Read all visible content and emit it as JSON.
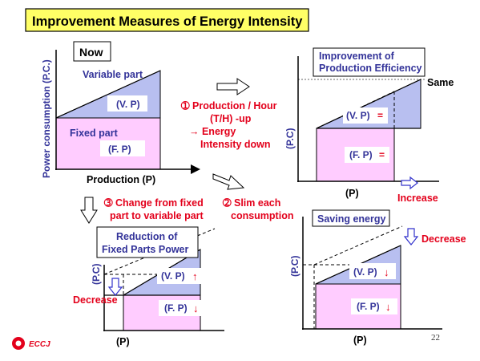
{
  "title": "Improvement Measures of Energy Intensity",
  "now": {
    "label": "Now",
    "variable_part": "Variable part",
    "vp": "(V. P)",
    "fixed_part": "Fixed part",
    "fp": "(F. P)",
    "ylabel": "Power consumption (P.C.)",
    "xlabel": "Production (P)"
  },
  "measure1": {
    "num": "➀",
    "line1": "Production / Hour",
    "line2": "(T/H) -up",
    "line3": "→ Energy",
    "line4": "Intensity down"
  },
  "efficiency": {
    "title_line1": "Improvement of",
    "title_line2": "Production Efficiency",
    "same": "Same",
    "vp": "(V. P)",
    "vp_change": "=",
    "fp": "(F. P)",
    "fp_change": "=",
    "ylabel": "(P.C)",
    "xlabel": "(P)",
    "increase": "Increase"
  },
  "measure3": {
    "num": "➂",
    "line1": "Change from fixed",
    "line2": "part to variable part"
  },
  "measure2": {
    "num": "➁",
    "line1": "Slim each",
    "line2": "consumption"
  },
  "fixed_reduction": {
    "title_line1": "Reduction of",
    "title_line2": "Fixed Parts Power",
    "vp": "(V. P)",
    "vp_change": "↑",
    "fp": "(F. P)",
    "fp_change": "↓",
    "ylabel": "(P.C)",
    "xlabel": "(P)",
    "decrease": "Decrease"
  },
  "saving": {
    "title": "Saving energy",
    "decrease": "Decrease",
    "vp": "(V. P)",
    "vp_change": "↓",
    "fp": "(F. P)",
    "fp_change": "↓",
    "ylabel": "(P.C)",
    "xlabel": "(P)"
  },
  "logo": "ECCJ",
  "page_number": "22",
  "colors": {
    "title_bg": "#ffff66",
    "variable_fill": "#b8bff0",
    "fixed_fill": "#ffccff",
    "text_blue": "#333399",
    "accent_red": "#e3001b"
  }
}
